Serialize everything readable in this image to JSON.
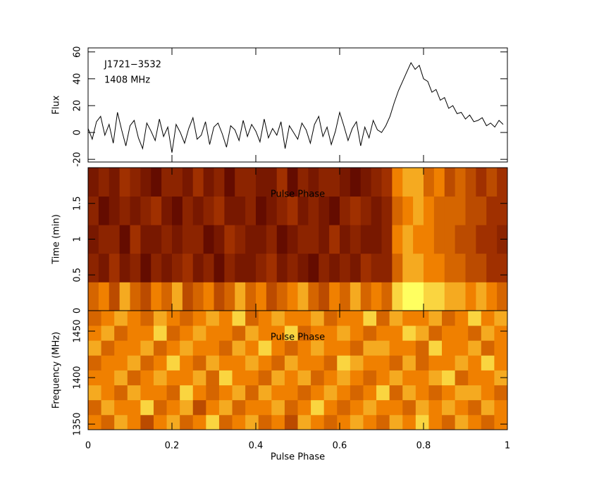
{
  "chart_data": [
    {
      "type": "line",
      "ylabel": "Flux",
      "annotations": [
        "J1721−3532",
        "1408 MHz"
      ],
      "color": "#000000",
      "xlim": [
        0,
        1
      ],
      "xticks": [
        0,
        0.2,
        0.4,
        0.6,
        0.8,
        1
      ],
      "ylim": [
        -22,
        63
      ],
      "yticks": [
        -20,
        0,
        20,
        40,
        60
      ],
      "x": [
        0,
        0.01,
        0.02,
        0.03,
        0.04,
        0.05,
        0.06,
        0.07,
        0.08,
        0.09,
        0.1,
        0.11,
        0.12,
        0.13,
        0.14,
        0.15,
        0.16,
        0.17,
        0.18,
        0.19,
        0.2,
        0.21,
        0.22,
        0.23,
        0.24,
        0.25,
        0.26,
        0.27,
        0.28,
        0.29,
        0.3,
        0.31,
        0.32,
        0.33,
        0.34,
        0.35,
        0.36,
        0.37,
        0.38,
        0.39,
        0.4,
        0.41,
        0.42,
        0.43,
        0.44,
        0.45,
        0.46,
        0.47,
        0.48,
        0.49,
        0.5,
        0.51,
        0.52,
        0.53,
        0.54,
        0.55,
        0.56,
        0.57,
        0.58,
        0.59,
        0.6,
        0.61,
        0.62,
        0.63,
        0.64,
        0.65,
        0.66,
        0.67,
        0.68,
        0.69,
        0.7,
        0.71,
        0.72,
        0.73,
        0.74,
        0.75,
        0.76,
        0.77,
        0.78,
        0.79,
        0.8,
        0.81,
        0.82,
        0.83,
        0.84,
        0.85,
        0.86,
        0.87,
        0.88,
        0.89,
        0.9,
        0.91,
        0.92,
        0.93,
        0.94,
        0.95,
        0.96,
        0.97,
        0.98,
        0.99
      ],
      "values": [
        3,
        -5,
        8,
        12,
        -2,
        6,
        -8,
        15,
        2,
        -10,
        5,
        9,
        -4,
        -12,
        7,
        1,
        -6,
        10,
        -3,
        4,
        -15,
        6,
        0,
        -8,
        3,
        11,
        -5,
        -2,
        8,
        -9,
        4,
        7,
        -1,
        -11,
        5,
        2,
        -6,
        9,
        -3,
        6,
        1,
        -7,
        10,
        -4,
        3,
        -2,
        8,
        -12,
        5,
        0,
        -5,
        7,
        2,
        -8,
        6,
        12,
        -3,
        4,
        -9,
        1,
        15,
        5,
        -6,
        3,
        8,
        -10,
        4,
        -4,
        9,
        2,
        0,
        5,
        12,
        22,
        31,
        38,
        45,
        52,
        47,
        50,
        40,
        38,
        30,
        32,
        24,
        26,
        18,
        20,
        14,
        15,
        10,
        13,
        8,
        9,
        11,
        5,
        7,
        4,
        9,
        6
      ]
    },
    {
      "type": "heatmap",
      "ylabel": "Time (min)",
      "annotations": [
        "Pulse Phase"
      ],
      "colormap": "heat",
      "xlim": [
        0,
        1
      ],
      "xticks": [
        0,
        0.2,
        0.4,
        0.6,
        0.8,
        1
      ],
      "ylim": [
        0,
        2
      ],
      "yticks": [
        0,
        0.5,
        1,
        1.5
      ],
      "z": [
        [
          0.6,
          0.7,
          0.5,
          0.8,
          0.6,
          0.5,
          0.7,
          0.6,
          0.8,
          0.5,
          0.6,
          0.7,
          0.5,
          0.6,
          0.8,
          0.6,
          0.7,
          0.5,
          0.6,
          0.7,
          0.8,
          0.6,
          0.5,
          0.7,
          0.6,
          0.8,
          0.6,
          0.7,
          0.6,
          0.9,
          1,
          1,
          0.9,
          0.9,
          0.8,
          0.8,
          0.7,
          0.8,
          0.7,
          0.6
        ],
        [
          0.3,
          0.2,
          0.4,
          0.2,
          0.3,
          0.1,
          0.3,
          0.2,
          0.3,
          0.4,
          0.2,
          0.3,
          0.1,
          0.3,
          0.2,
          0.2,
          0.3,
          0.4,
          0.2,
          0.3,
          0.2,
          0.1,
          0.3,
          0.2,
          0.3,
          0.2,
          0.4,
          0.3,
          0.3,
          0.6,
          0.8,
          0.8,
          0.7,
          0.7,
          0.6,
          0.6,
          0.5,
          0.5,
          0.4,
          0.4
        ],
        [
          0.2,
          0.3,
          0.3,
          0.1,
          0.4,
          0.2,
          0.2,
          0.3,
          0.2,
          0.3,
          0.3,
          0.1,
          0.2,
          0.4,
          0.3,
          0.2,
          0.2,
          0.3,
          0.1,
          0.2,
          0.3,
          0.3,
          0.2,
          0.4,
          0.2,
          0.3,
          0.2,
          0.2,
          0.3,
          0.7,
          0.8,
          0.7,
          0.7,
          0.6,
          0.6,
          0.5,
          0.5,
          0.4,
          0.4,
          0.3
        ],
        [
          0.3,
          0.1,
          0.2,
          0.3,
          0.2,
          0.3,
          0.4,
          0.2,
          0.1,
          0.3,
          0.2,
          0.3,
          0.4,
          0.2,
          0.2,
          0.3,
          0.1,
          0.2,
          0.3,
          0.4,
          0.2,
          0.3,
          0.2,
          0.1,
          0.3,
          0.4,
          0.3,
          0.2,
          0.3,
          0.6,
          0.7,
          0.8,
          0.7,
          0.6,
          0.6,
          0.6,
          0.5,
          0.5,
          0.4,
          0.4
        ],
        [
          0.2,
          0.3,
          0.2,
          0.4,
          0.3,
          0.2,
          0.1,
          0.3,
          0.3,
          0.2,
          0.4,
          0.2,
          0.3,
          0.1,
          0.3,
          0.3,
          0.2,
          0.2,
          0.4,
          0.1,
          0.3,
          0.2,
          0.3,
          0.3,
          0.2,
          0.1,
          0.2,
          0.3,
          0.4,
          0.7,
          0.8,
          0.8,
          0.6,
          0.7,
          0.5,
          0.6,
          0.5,
          0.4,
          0.5,
          0.4
        ]
      ]
    },
    {
      "type": "heatmap",
      "ylabel": "Frequency (MHz)",
      "xlabel": "Pulse Phase",
      "annotations": [
        "Pulse Phase"
      ],
      "colormap": "heat",
      "xlim": [
        0,
        1
      ],
      "xticks": [
        0,
        0.2,
        0.4,
        0.6,
        0.8,
        1
      ],
      "ylim": [
        1344,
        1472
      ],
      "yticks": [
        1350,
        1400,
        1450
      ],
      "z": [
        [
          0.7,
          0.6,
          0.8,
          0.7,
          0.5,
          0.7,
          0.8,
          0.6,
          0.7,
          0.9,
          0.6,
          0.7,
          0.8,
          0.6,
          0.7,
          0.5,
          0.8,
          0.7,
          0.6,
          0.7,
          0.8,
          0.7,
          0.6,
          0.8,
          0.7,
          0.9,
          0.7,
          0.6,
          0.8,
          0.7,
          0.6,
          0.7
        ],
        [
          0.6,
          0.8,
          0.7,
          0.7,
          0.9,
          0.6,
          0.7,
          0.8,
          0.5,
          0.7,
          0.8,
          0.6,
          0.7,
          0.7,
          0.8,
          0.6,
          0.7,
          0.9,
          0.7,
          0.6,
          0.7,
          0.8,
          0.7,
          0.7,
          0.6,
          0.8,
          0.7,
          0.8,
          0.7,
          0.6,
          0.8,
          0.7
        ],
        [
          0.8,
          0.7,
          0.6,
          0.8,
          0.7,
          0.7,
          0.6,
          0.9,
          0.7,
          0.6,
          0.7,
          0.8,
          0.6,
          0.8,
          0.7,
          0.7,
          0.6,
          0.7,
          0.8,
          0.7,
          0.6,
          0.7,
          0.9,
          0.6,
          0.8,
          0.7,
          0.6,
          0.7,
          0.8,
          0.8,
          0.7,
          0.6
        ],
        [
          0.7,
          0.7,
          0.8,
          0.6,
          0.7,
          0.8,
          0.7,
          0.7,
          0.8,
          0.6,
          0.9,
          0.7,
          0.7,
          0.6,
          0.8,
          0.7,
          0.8,
          0.6,
          0.7,
          0.8,
          0.7,
          0.6,
          0.7,
          0.8,
          0.7,
          0.7,
          0.8,
          0.9,
          0.6,
          0.7,
          0.7,
          0.8
        ],
        [
          0.6,
          0.7,
          0.7,
          0.8,
          0.6,
          0.7,
          0.9,
          0.7,
          0.6,
          0.8,
          0.7,
          0.7,
          0.8,
          0.7,
          0.6,
          0.8,
          0.7,
          0.7,
          0.6,
          0.9,
          0.8,
          0.7,
          0.7,
          0.6,
          0.8,
          0.6,
          0.7,
          0.7,
          0.8,
          0.7,
          0.9,
          0.7
        ],
        [
          0.8,
          0.6,
          0.7,
          0.7,
          0.8,
          0.6,
          0.7,
          0.8,
          0.7,
          0.7,
          0.6,
          0.8,
          0.7,
          0.9,
          0.7,
          0.6,
          0.7,
          0.8,
          0.7,
          0.7,
          0.6,
          0.8,
          0.8,
          0.7,
          0.7,
          0.6,
          0.9,
          0.7,
          0.7,
          0.8,
          0.6,
          0.7
        ],
        [
          0.7,
          0.8,
          0.6,
          0.7,
          0.7,
          0.9,
          0.6,
          0.7,
          0.8,
          0.7,
          0.7,
          0.6,
          0.8,
          0.7,
          0.7,
          0.9,
          0.6,
          0.7,
          0.7,
          0.8,
          0.7,
          0.6,
          0.7,
          0.7,
          0.9,
          0.8,
          0.6,
          0.7,
          0.7,
          0.6,
          0.8,
          0.7
        ],
        [
          0.6,
          0.7,
          0.8,
          0.7,
          0.6,
          0.8,
          0.7,
          0.6,
          0.7,
          0.8,
          0.7,
          0.9,
          0.6,
          0.7,
          0.8,
          0.7,
          0.7,
          0.8,
          0.6,
          0.7,
          0.7,
          0.9,
          0.6,
          0.8,
          0.7,
          0.7,
          0.8,
          0.6,
          0.7,
          0.9,
          0.7,
          0.8
        ]
      ]
    }
  ]
}
